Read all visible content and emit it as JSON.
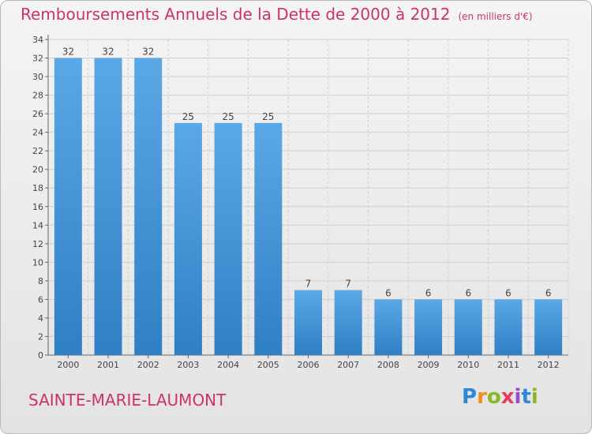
{
  "header": {
    "title": "Remboursements Annuels de la Dette de 2000 à 2012",
    "subtitle": "(en milliers d'€)"
  },
  "footer": {
    "town": "SAINTE-MARIE-LAUMONT",
    "logo_letters": [
      "P",
      "r",
      "o",
      "x",
      "i",
      "t",
      "i"
    ]
  },
  "colors": {
    "title": "#cc3366",
    "bar_light": "#5ba8e6",
    "bar_dark": "#2f7fc4",
    "grid": "#cfcfcf"
  },
  "chart_data": {
    "type": "bar",
    "title": "Remboursements Annuels de la Dette de 2000 à 2012",
    "xlabel": "",
    "ylabel": "",
    "categories": [
      "2000",
      "2001",
      "2002",
      "2003",
      "2004",
      "2005",
      "2006",
      "2007",
      "2008",
      "2009",
      "2010",
      "2011",
      "2012"
    ],
    "values": [
      32,
      32,
      32,
      25,
      25,
      25,
      7,
      7,
      6,
      6,
      6,
      6,
      6
    ],
    "ylim": [
      0,
      34
    ],
    "yticks": [
      0,
      2,
      4,
      6,
      8,
      10,
      12,
      14,
      16,
      18,
      20,
      22,
      24,
      26,
      28,
      30,
      32,
      34
    ],
    "grid": true,
    "data_labels": true
  }
}
